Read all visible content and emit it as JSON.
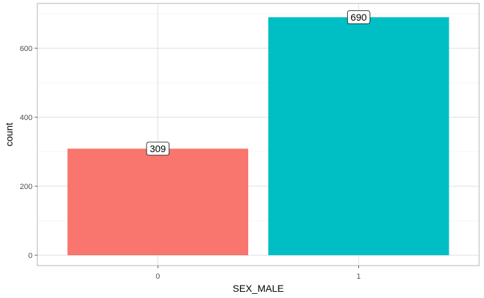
{
  "chart_data": {
    "type": "bar",
    "categories": [
      "0",
      "1"
    ],
    "values": [
      309,
      690
    ],
    "data_labels": [
      "309",
      "690"
    ],
    "title": "",
    "xlabel": "SEX_MALE",
    "ylabel": "count",
    "ylim": [
      0,
      724.5
    ],
    "yticks": [
      0,
      200,
      400,
      600
    ],
    "ytick_labels": [
      "0",
      "200",
      "400",
      "600"
    ],
    "colors": [
      "#F8766D",
      "#00BFC4"
    ],
    "grid": true,
    "legend": "none"
  }
}
